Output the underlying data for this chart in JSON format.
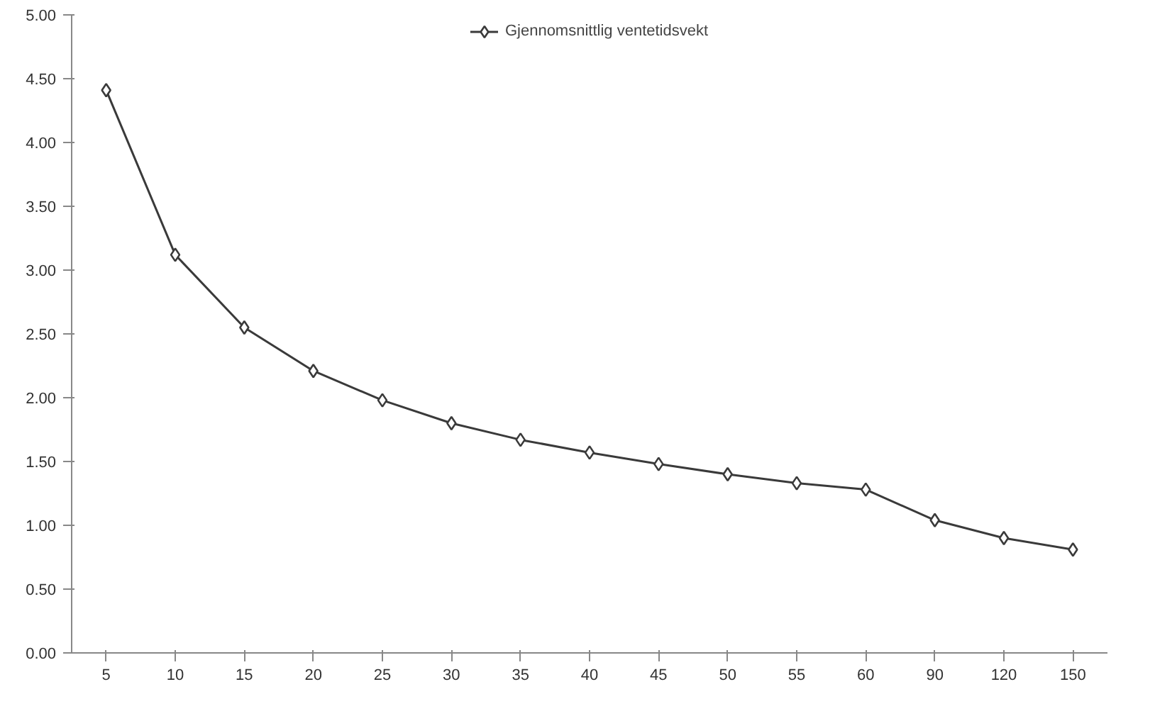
{
  "chart_data": {
    "type": "line",
    "categories": [
      "5",
      "10",
      "15",
      "20",
      "25",
      "30",
      "35",
      "40",
      "45",
      "50",
      "55",
      "60",
      "90",
      "120",
      "150"
    ],
    "series": [
      {
        "name": "Gjennomsnittlig ventetidsvekt",
        "color": "#3a3a3a",
        "values": [
          4.41,
          3.12,
          2.55,
          2.21,
          1.98,
          1.8,
          1.67,
          1.57,
          1.48,
          1.4,
          1.33,
          1.28,
          1.04,
          0.9,
          0.81
        ]
      }
    ],
    "ylim": [
      0,
      5
    ],
    "yticks": [
      {
        "value": 0,
        "label": "0.00"
      },
      {
        "value": 0.5,
        "label": "0.50"
      },
      {
        "value": 1,
        "label": "1.00"
      },
      {
        "value": 1.5,
        "label": "1.50"
      },
      {
        "value": 2,
        "label": "2.00"
      },
      {
        "value": 2.5,
        "label": "2.50"
      },
      {
        "value": 3,
        "label": "3.00"
      },
      {
        "value": 3.5,
        "label": "3.50"
      },
      {
        "value": 4,
        "label": "4.00"
      },
      {
        "value": 4.5,
        "label": "4.50"
      },
      {
        "value": 5,
        "label": "5.00"
      }
    ],
    "grid": false,
    "legend": "top",
    "marker": "diamond",
    "line_style": "solid"
  }
}
